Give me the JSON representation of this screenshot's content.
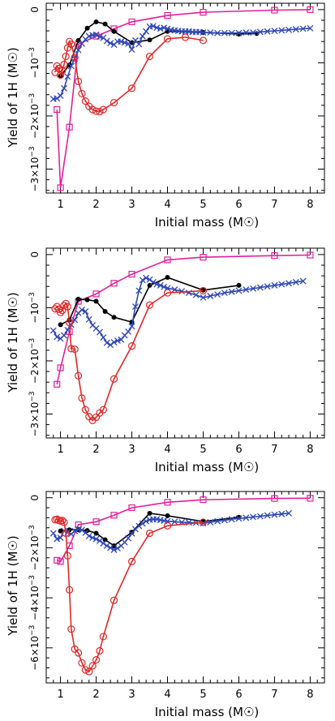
{
  "colors": {
    "magenta": "#e0209a",
    "black": "#000000",
    "blue": "#3048b8",
    "red": "#e02828"
  },
  "chart_data": [
    {
      "type": "line",
      "xlabel": "Initial mass (M☉)",
      "ylabel": "Yield of 1H (M☉)",
      "xlim": [
        0.6,
        8.4
      ],
      "xticks": [
        "1",
        "2",
        "3",
        "4",
        "5",
        "6",
        "7",
        "8"
      ],
      "ylim": [
        -0.00345,
        0.00012
      ],
      "yticks": [
        {
          "value": 0,
          "label": "0",
          "exp": ""
        },
        {
          "value": -0.001,
          "label": "−10",
          "exp": "−3"
        },
        {
          "value": -0.002,
          "label": "−2×10",
          "exp": "−3"
        },
        {
          "value": -0.003,
          "label": "−3×10",
          "exp": "−3"
        }
      ],
      "series": [
        {
          "color": "magenta",
          "marker": "square",
          "x": [
            0.9,
            1.0,
            1.25,
            1.5,
            2.0,
            2.5,
            3.0,
            4.0,
            5.0,
            7.0,
            8.0
          ],
          "y": [
            -0.00188,
            -0.00335,
            -0.00221,
            -0.00065,
            -0.0005,
            -0.00036,
            -0.00023,
            -0.00011,
            -5e-05,
            -1e-05,
            0.0
          ]
        },
        {
          "color": "black",
          "marker": "dot",
          "x": [
            1.0,
            1.25,
            1.5,
            1.75,
            2.0,
            2.25,
            2.5,
            3.0,
            3.5,
            4.0,
            5.0,
            6.0,
            6.5
          ],
          "y": [
            -0.00125,
            -0.00104,
            -0.00058,
            -0.00035,
            -0.00023,
            -0.00027,
            -0.00041,
            -0.00062,
            -0.00057,
            -0.00041,
            -0.00043,
            -0.00046,
            -0.00045
          ]
        },
        {
          "color": "blue",
          "marker": "cross",
          "x": [
            0.8,
            0.9,
            1.0,
            1.1,
            1.2,
            1.3,
            1.4,
            1.5,
            1.6,
            1.7,
            1.8,
            1.9,
            2.0,
            2.1,
            2.2,
            2.3,
            2.4,
            2.5,
            2.6,
            2.7,
            2.8,
            2.9,
            3.0,
            3.1,
            3.2,
            3.3,
            3.4,
            3.5,
            3.6,
            3.7,
            3.8,
            3.9,
            4.0,
            4.1,
            4.2,
            4.3,
            4.4,
            4.5,
            4.6,
            4.7,
            4.8,
            4.9,
            5.0,
            5.2,
            5.4,
            5.6,
            5.8,
            6.0,
            6.2,
            6.4,
            6.6,
            6.8,
            7.0,
            7.2,
            7.4,
            7.6,
            7.8,
            8.0
          ],
          "y": [
            -0.00168,
            -0.00167,
            -0.00162,
            -0.00148,
            -0.00126,
            -0.00106,
            -0.00092,
            -0.00076,
            -0.00064,
            -0.00056,
            -0.0005,
            -0.00048,
            -0.00047,
            -0.00051,
            -0.00053,
            -0.00059,
            -0.00063,
            -0.00066,
            -0.0006,
            -0.0006,
            -0.00062,
            -0.00064,
            -0.00075,
            -0.00058,
            -0.00065,
            -0.0005,
            -0.00041,
            -0.00032,
            -0.00031,
            -0.00034,
            -0.00036,
            -0.00034,
            -0.00036,
            -0.00038,
            -0.00039,
            -0.0004,
            -0.00041,
            -0.00041,
            -0.00041,
            -0.00042,
            -0.00042,
            -0.00042,
            -0.00043,
            -0.00043,
            -0.00044,
            -0.00044,
            -0.00044,
            -0.00044,
            -0.00043,
            -0.00043,
            -0.00042,
            -0.00041,
            -0.0004,
            -0.00039,
            -0.00038,
            -0.00037,
            -0.00036,
            -0.00035
          ]
        },
        {
          "color": "red",
          "marker": "circle",
          "x": [
            0.85,
            0.9,
            0.95,
            1.0,
            1.05,
            1.1,
            1.15,
            1.2,
            1.25,
            1.3,
            1.4,
            1.5,
            1.6,
            1.7,
            1.8,
            1.9,
            2.0,
            2.1,
            2.2,
            2.5,
            3.0,
            3.5,
            4.0,
            4.5,
            5.0
          ],
          "y": [
            -0.00118,
            -0.00106,
            -0.00111,
            -0.00123,
            -0.00115,
            -0.00103,
            -0.00088,
            -0.00072,
            -0.0006,
            -0.00065,
            -0.0009,
            -0.00135,
            -0.00158,
            -0.00172,
            -0.00182,
            -0.00188,
            -0.00191,
            -0.00192,
            -0.00188,
            -0.00175,
            -0.00148,
            -0.00088,
            -0.00055,
            -0.00052,
            -0.00058
          ]
        }
      ]
    },
    {
      "type": "line",
      "xlabel": "Initial mass (M☉)",
      "ylabel": "Yield of 1H (M☉)",
      "xlim": [
        0.6,
        8.4
      ],
      "xticks": [
        "1",
        "2",
        "3",
        "4",
        "5",
        "6",
        "7",
        "8"
      ],
      "ylim": [
        -0.00345,
        0.00012
      ],
      "yticks": [
        {
          "value": 0,
          "label": "0",
          "exp": ""
        },
        {
          "value": -0.001,
          "label": "−10",
          "exp": "−3"
        },
        {
          "value": -0.002,
          "label": "−2×10",
          "exp": "−3"
        },
        {
          "value": -0.003,
          "label": "−3×10",
          "exp": "−3"
        }
      ],
      "series": [
        {
          "color": "magenta",
          "marker": "square",
          "x": [
            0.9,
            1.0,
            1.25,
            1.5,
            2.0,
            2.5,
            3.0,
            4.0,
            5.0,
            7.0,
            8.0
          ],
          "y": [
            -0.00244,
            -0.00213,
            -0.00145,
            -0.00088,
            -0.00074,
            -0.00054,
            -0.00037,
            -0.0001,
            -5e-05,
            -2e-05,
            -1e-05
          ]
        },
        {
          "color": "black",
          "marker": "dot",
          "x": [
            1.0,
            1.25,
            1.5,
            1.75,
            2.0,
            2.25,
            2.5,
            3.0,
            3.5,
            4.0,
            5.0,
            6.0
          ],
          "y": [
            -0.00132,
            -0.00123,
            -0.00084,
            -0.00085,
            -0.00088,
            -0.00107,
            -0.00118,
            -0.00127,
            -0.00058,
            -0.00043,
            -0.00067,
            -0.00058
          ]
        },
        {
          "color": "blue",
          "marker": "cross",
          "x": [
            0.8,
            0.9,
            1.0,
            1.1,
            1.2,
            1.3,
            1.4,
            1.5,
            1.6,
            1.7,
            1.8,
            1.9,
            2.0,
            2.1,
            2.2,
            2.3,
            2.4,
            2.5,
            2.6,
            2.7,
            2.8,
            2.9,
            3.0,
            3.1,
            3.2,
            3.3,
            3.4,
            3.5,
            3.6,
            3.7,
            3.8,
            3.9,
            4.0,
            4.2,
            4.4,
            4.6,
            4.8,
            5.0,
            5.2,
            5.4,
            5.6,
            5.8,
            6.0,
            6.2,
            6.4,
            6.6,
            6.8,
            7.0,
            7.2,
            7.4,
            7.6,
            7.8
          ],
          "y": [
            -0.00143,
            -0.00155,
            -0.00158,
            -0.00152,
            -0.00142,
            -0.00132,
            -0.00123,
            -0.0011,
            -0.00104,
            -0.00107,
            -0.00122,
            -0.00133,
            -0.00139,
            -0.00146,
            -0.00156,
            -0.00166,
            -0.0017,
            -0.00165,
            -0.00162,
            -0.0016,
            -0.00152,
            -0.00145,
            -0.00135,
            -0.00098,
            -0.00068,
            -0.00048,
            -0.00044,
            -0.00047,
            -0.00052,
            -0.00056,
            -0.00058,
            -0.00061,
            -0.00063,
            -0.00066,
            -0.00069,
            -0.00072,
            -0.00076,
            -0.00081,
            -0.00078,
            -0.00075,
            -0.00072,
            -0.0007,
            -0.00068,
            -0.00066,
            -0.00064,
            -0.00062,
            -0.0006,
            -0.00058,
            -0.00056,
            -0.00054,
            -0.00052,
            -0.0005
          ]
        },
        {
          "color": "red",
          "marker": "circle",
          "x": [
            0.85,
            0.9,
            0.95,
            1.0,
            1.05,
            1.1,
            1.15,
            1.2,
            1.25,
            1.3,
            1.4,
            1.5,
            1.6,
            1.7,
            1.8,
            1.9,
            2.0,
            2.1,
            2.2,
            2.5,
            3.0,
            3.5,
            4.0,
            5.0
          ],
          "y": [
            -0.00102,
            -0.00098,
            -0.00103,
            -0.00109,
            -0.00105,
            -0.00096,
            -0.00092,
            -0.00098,
            -0.00128,
            -0.00177,
            -0.00178,
            -0.00228,
            -0.0027,
            -0.00292,
            -0.00305,
            -0.00312,
            -0.00306,
            -0.00298,
            -0.00292,
            -0.00234,
            -0.00172,
            -0.00095,
            -0.00072,
            -0.00068
          ]
        }
      ]
    },
    {
      "type": "line",
      "xlabel": "Initial mass (M☉)",
      "ylabel": "Yield of 1H (M☉)",
      "xlim": [
        0.6,
        8.4
      ],
      "xticks": [
        "1",
        "2",
        "3",
        "4",
        "5",
        "6",
        "7",
        "8"
      ],
      "ylim": [
        -0.0074,
        0.00025
      ],
      "yticks": [
        {
          "value": 0,
          "label": "0",
          "exp": ""
        },
        {
          "value": -0.002,
          "label": "−2×10",
          "exp": "−3"
        },
        {
          "value": -0.004,
          "label": "−4×10",
          "exp": "−3"
        },
        {
          "value": -0.006,
          "label": "−6×10",
          "exp": "−3"
        }
      ],
      "series": [
        {
          "color": "magenta",
          "marker": "square",
          "x": [
            0.9,
            1.0,
            1.25,
            1.5,
            2.0,
            2.5,
            3.0,
            4.0,
            5.0,
            7.0,
            8.0
          ],
          "y": [
            -0.0025,
            -0.00255,
            -0.00192,
            -0.00108,
            -0.00096,
            -0.0007,
            -0.0004,
            -0.00018,
            -8e-05,
            -3e-05,
            -2e-05
          ]
        },
        {
          "color": "black",
          "marker": "dot",
          "x": [
            1.0,
            1.25,
            1.5,
            1.75,
            2.0,
            2.25,
            2.5,
            3.0,
            3.5,
            4.0,
            5.0,
            6.0
          ],
          "y": [
            -0.00133,
            -0.00128,
            -0.00128,
            -0.00131,
            -0.00142,
            -0.00168,
            -0.00192,
            -0.00138,
            -0.00062,
            -0.00072,
            -0.00095,
            -0.00078
          ]
        },
        {
          "color": "blue",
          "marker": "cross",
          "x": [
            0.8,
            0.9,
            1.0,
            1.1,
            1.2,
            1.3,
            1.4,
            1.5,
            1.6,
            1.7,
            1.8,
            1.9,
            2.0,
            2.1,
            2.2,
            2.3,
            2.4,
            2.5,
            2.6,
            2.7,
            2.8,
            2.9,
            3.0,
            3.1,
            3.2,
            3.3,
            3.4,
            3.5,
            3.6,
            3.7,
            3.8,
            3.9,
            4.0,
            4.2,
            4.4,
            4.6,
            4.8,
            5.0,
            5.2,
            5.4,
            5.6,
            5.8,
            6.0,
            6.2,
            6.4,
            6.6,
            6.8,
            7.0,
            7.2,
            7.4
          ],
          "y": [
            -0.00142,
            -0.00165,
            -0.0016,
            -0.00132,
            -0.00138,
            -0.00145,
            -0.00133,
            -0.00126,
            -0.00129,
            -0.0014,
            -0.00153,
            -0.0016,
            -0.00165,
            -0.00172,
            -0.00182,
            -0.00192,
            -0.002,
            -0.00208,
            -0.00202,
            -0.00192,
            -0.00178,
            -0.00162,
            -0.00143,
            -0.00126,
            -0.00113,
            -0.00103,
            -0.00094,
            -0.00088,
            -0.00086,
            -0.00086,
            -0.00089,
            -0.00092,
            -0.00094,
            -0.00096,
            -0.00098,
            -0.00099,
            -0.001,
            -0.00102,
            -0.00098,
            -0.00094,
            -0.0009,
            -0.00086,
            -0.00083,
            -0.0008,
            -0.00077,
            -0.00074,
            -0.00071,
            -0.00068,
            -0.00065,
            -0.00062
          ]
        },
        {
          "color": "red",
          "marker": "circle",
          "x": [
            0.85,
            0.9,
            0.95,
            1.0,
            1.05,
            1.1,
            1.15,
            1.2,
            1.25,
            1.3,
            1.4,
            1.5,
            1.6,
            1.7,
            1.8,
            1.9,
            2.0,
            2.1,
            2.2,
            2.5,
            3.0,
            3.5,
            4.0,
            5.0
          ],
          "y": [
            -0.00088,
            -0.00086,
            -0.0009,
            -0.00093,
            -0.00091,
            -0.00098,
            -0.00142,
            -0.00232,
            -0.00368,
            -0.00525,
            -0.00605,
            -0.0062,
            -0.0066,
            -0.00688,
            -0.00695,
            -0.00672,
            -0.00648,
            -0.00612,
            -0.00555,
            -0.0041,
            -0.00255,
            -0.00142,
            -0.00112,
            -0.00098
          ]
        }
      ]
    }
  ]
}
